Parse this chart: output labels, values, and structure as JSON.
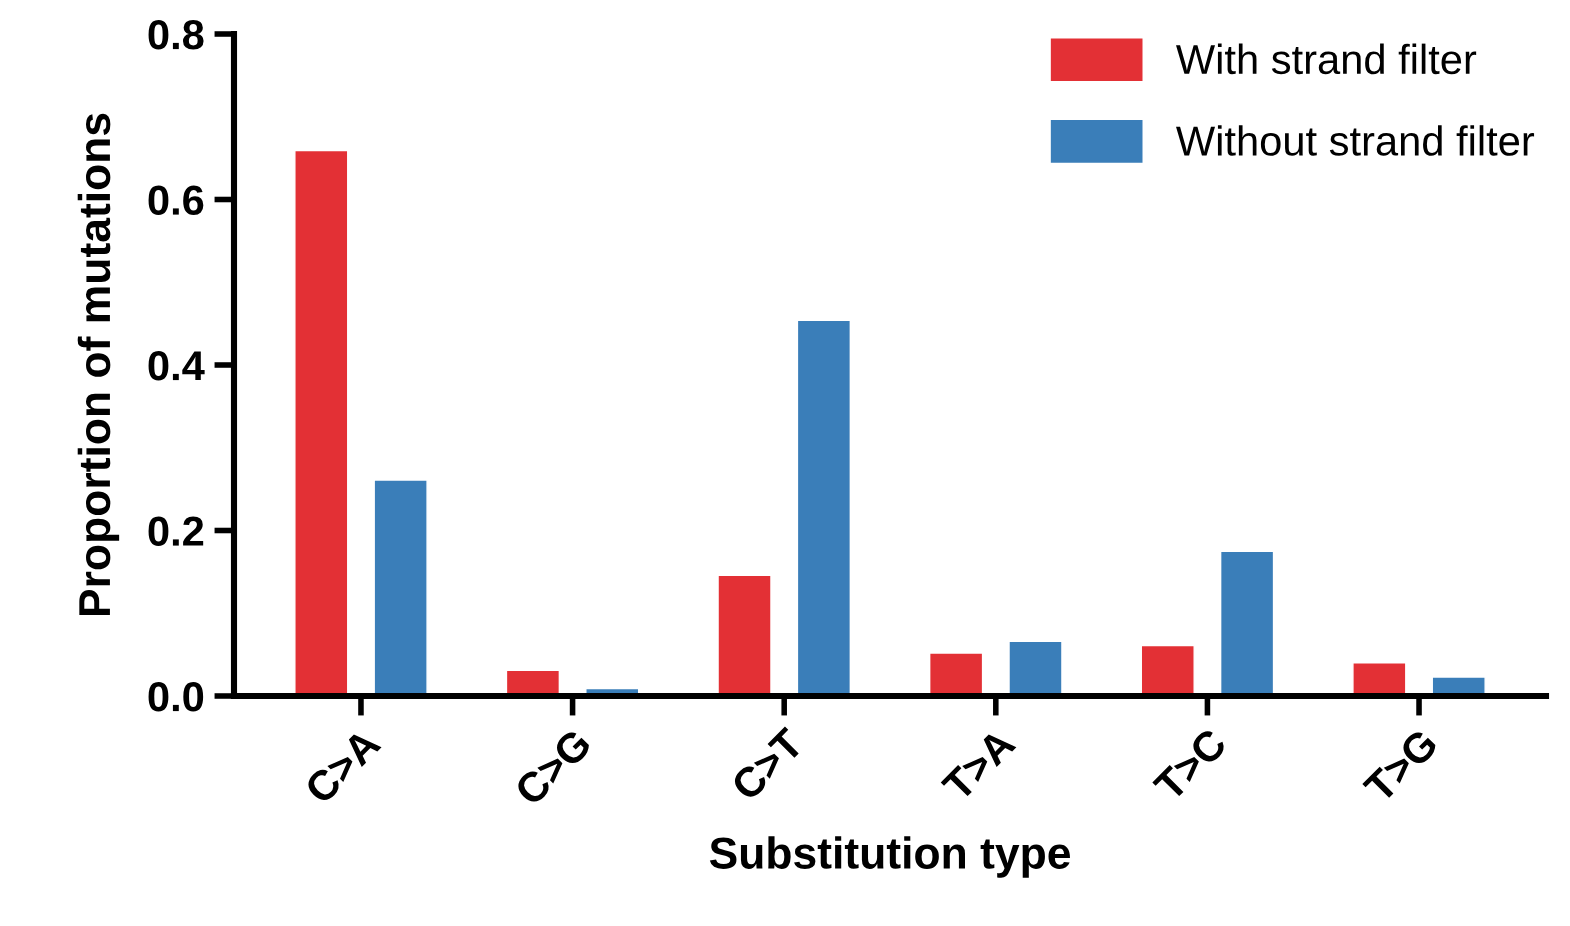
{
  "chart_data": {
    "type": "bar",
    "xlabel": "Substitution type",
    "ylabel": "Proportion of mutations",
    "categories": [
      "C>A",
      "C>G",
      "C>T",
      "T>A",
      "T>C",
      "T>G"
    ],
    "series": [
      {
        "name": "With strand filter",
        "color": "#e33035",
        "values": [
          0.659,
          0.031,
          0.146,
          0.052,
          0.061,
          0.04
        ]
      },
      {
        "name": "Without strand filter",
        "color": "#3a7eb9",
        "values": [
          0.261,
          0.009,
          0.454,
          0.066,
          0.175,
          0.023
        ]
      }
    ],
    "ylim": [
      0,
      0.8
    ],
    "yticks": [
      {
        "value": 0,
        "label": "0.0"
      },
      {
        "value": 0.2,
        "label": "0.2"
      },
      {
        "value": 0.4,
        "label": "0.4"
      },
      {
        "value": 0.6,
        "label": "0.6"
      },
      {
        "value": 0.8,
        "label": "0.8"
      }
    ],
    "grid": false,
    "legend": "top right"
  }
}
